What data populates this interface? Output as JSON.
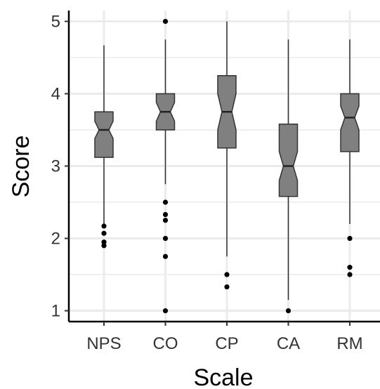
{
  "chart_data": {
    "type": "boxplot",
    "notched": true,
    "xlabel": "Scale",
    "ylabel": "Score",
    "categories": [
      "NPS",
      "CO",
      "CP",
      "CA",
      "RM"
    ],
    "ylim": [
      0.85,
      5.15
    ],
    "yticks": [
      1,
      2,
      3,
      4,
      5
    ],
    "grid": true,
    "colors": {
      "box_fill": "#808080",
      "box_stroke": "#333333",
      "grid": "#ebebeb",
      "axis": "#000000"
    },
    "boxes": [
      {
        "name": "NPS",
        "whisker_low": 2.2,
        "q1": 3.12,
        "median": 3.5,
        "q3": 3.75,
        "whisker_high": 4.67,
        "notch_low": 3.38,
        "notch_high": 3.62,
        "outliers": [
          2.17,
          2.07,
          1.95,
          1.9
        ]
      },
      {
        "name": "CO",
        "whisker_low": 2.75,
        "q1": 3.5,
        "median": 3.75,
        "q3": 4.0,
        "whisker_high": 4.75,
        "notch_low": 3.62,
        "notch_high": 3.88,
        "outliers": [
          5.0,
          2.5,
          2.33,
          2.25,
          2.0,
          1.75,
          1.0
        ]
      },
      {
        "name": "CP",
        "whisker_low": 1.75,
        "q1": 3.25,
        "median": 3.75,
        "q3": 4.25,
        "whisker_high": 5.0,
        "notch_low": 3.5,
        "notch_high": 4.0,
        "outliers": [
          1.5,
          1.33
        ]
      },
      {
        "name": "CA",
        "whisker_low": 1.15,
        "q1": 2.58,
        "median": 3.0,
        "q3": 3.58,
        "whisker_high": 4.75,
        "notch_low": 2.8,
        "notch_high": 3.2,
        "outliers": [
          1.0
        ]
      },
      {
        "name": "RM",
        "whisker_low": 2.2,
        "q1": 3.2,
        "median": 3.67,
        "q3": 4.0,
        "whisker_high": 4.75,
        "notch_low": 3.5,
        "notch_high": 3.83,
        "outliers": [
          2.0,
          1.6,
          1.5
        ]
      }
    ]
  }
}
